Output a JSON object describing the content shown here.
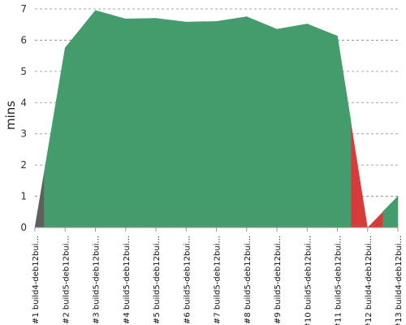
{
  "chart_data": {
    "type": "area",
    "ylabel": "mins",
    "ylim": [
      0,
      7
    ],
    "yticks": [
      0,
      1,
      2,
      3,
      4,
      5,
      6,
      7
    ],
    "grid": true,
    "categories": [
      "#1 build4-deb12bui...",
      "#2 build5-deb12bui...",
      "#3 build5-deb12bui...",
      "#4 build5-deb12bui...",
      "#5 build5-deb12bui...",
      "#6 build5-deb12bui...",
      "#7 build5-deb12bui...",
      "#8 build5-deb12bui...",
      "#9 build5-deb12bui...",
      "#10 build5-deb12bui...",
      "#11 build5-deb12bui...",
      "#12 build4-deb12bui...",
      "#13 build4-deb12bui..."
    ],
    "values": [
      0.0,
      5.75,
      6.95,
      6.68,
      6.7,
      6.58,
      6.6,
      6.75,
      6.35,
      6.52,
      6.13,
      0.0,
      1.0
    ],
    "status": [
      "aborted",
      "success",
      "success",
      "success",
      "success",
      "success",
      "success",
      "success",
      "success",
      "success",
      "success",
      "failure",
      "success"
    ],
    "colors": {
      "success": "#449c6c",
      "failure": "#d93b3b",
      "aborted": "#5f5f5f"
    }
  }
}
